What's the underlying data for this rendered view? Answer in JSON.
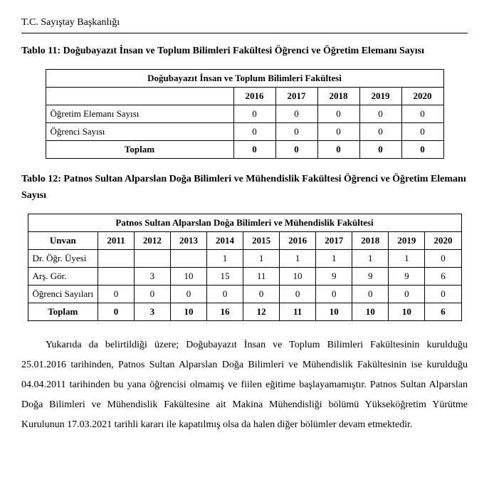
{
  "header": "T.C. Sayıştay Başkanlığı",
  "table11": {
    "caption": "Tablo 11: Doğubayazıt İnsan ve Toplum Bilimleri Fakültesi Öğrenci ve Öğretim Elemanı Sayısı",
    "title": "Doğubayazıt İnsan ve Toplum Bilimleri Fakültesi",
    "years": [
      "2016",
      "2017",
      "2018",
      "2019",
      "2020"
    ],
    "rows": [
      {
        "label": "Öğretim Elemanı Sayısı",
        "values": [
          "0",
          "0",
          "0",
          "0",
          "0"
        ]
      },
      {
        "label": "Öğrenci Sayısı",
        "values": [
          "0",
          "0",
          "0",
          "0",
          "0"
        ]
      }
    ],
    "total_label": "Toplam",
    "total_values": [
      "0",
      "0",
      "0",
      "0",
      "0"
    ]
  },
  "table12": {
    "caption": "Tablo 12: Patnos Sultan Alparslan Doğa Bilimleri ve Mühendislik Fakültesi Öğrenci ve Öğretim Elemanı Sayısı",
    "title": "Patnos Sultan Alparslan Doğa Bilimleri ve Mühendislik Fakültesi",
    "unvan_label": "Unvan",
    "years": [
      "2011",
      "2012",
      "2013",
      "2014",
      "2015",
      "2016",
      "2017",
      "2018",
      "2019",
      "2020"
    ],
    "rows": [
      {
        "label": "Dr. Öğr. Üyesi",
        "values": [
          "",
          "",
          "",
          "1",
          "1",
          "1",
          "1",
          "1",
          "1",
          "0"
        ]
      },
      {
        "label": "Arş. Gör.",
        "values": [
          "",
          "3",
          "10",
          "15",
          "11",
          "10",
          "9",
          "9",
          "9",
          "6"
        ]
      },
      {
        "label": "Öğrenci Sayıları",
        "values": [
          "0",
          "0",
          "0",
          "0",
          "0",
          "0",
          "0",
          "0",
          "0",
          "0"
        ]
      }
    ],
    "total_label": "Toplam",
    "total_values": [
      "0",
      "3",
      "10",
      "16",
      "12",
      "11",
      "10",
      "10",
      "10",
      "6"
    ]
  },
  "paragraph": "Yukarıda da belirtildiği üzere; Doğubayazıt İnsan ve Toplum Bilimleri Fakültesinin kurulduğu 25.01.2016 tarihinden, Patnos Sultan Alparslan Doğa Bilimleri ve Mühendislik Fakültesinin ise kurulduğu 04.04.2011 tarihinden bu yana öğrencisi olmamış ve fiilen eğitime başlayamamıştır. Patnos Sultan Alparslan Doğa Bilimleri ve Mühendislik Fakültesine ait Makina Mühendisliği bölümü Yükseköğretim Yürütme Kurulunun 17.03.2021 tarihli kararı ile kapatılmış olsa da halen diğer bölümler devam etmektedir."
}
